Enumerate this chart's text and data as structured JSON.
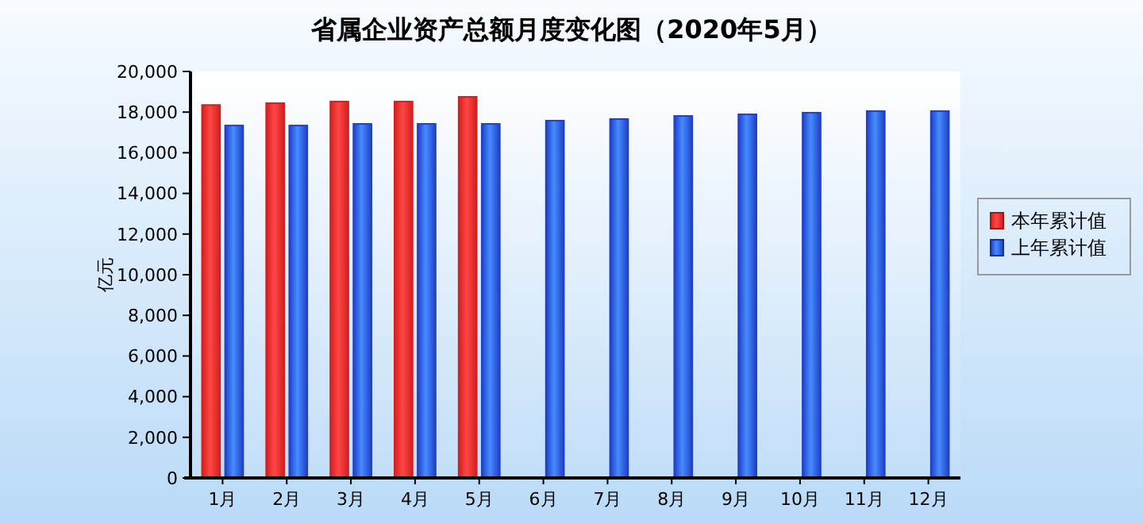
{
  "chart_data": {
    "type": "bar",
    "title": "省属企业资产总额月度变化图（2020年5月）",
    "ylabel": "亿元",
    "categories": [
      "1月",
      "2月",
      "3月",
      "4月",
      "5月",
      "6月",
      "7月",
      "8月",
      "9月",
      "10月",
      "11月",
      "12月"
    ],
    "series": [
      {
        "name": "本年累计值",
        "color": "#d42020",
        "values": [
          18350,
          18440,
          18520,
          18520,
          18750,
          null,
          null,
          null,
          null,
          null,
          null,
          null
        ]
      },
      {
        "name": "上年累计值",
        "color": "#2040c8",
        "values": [
          17340,
          17340,
          17420,
          17420,
          17420,
          17580,
          17660,
          17810,
          17890,
          17970,
          18050,
          18050
        ]
      }
    ],
    "ylim": [
      0,
      20000
    ],
    "yticks": [
      0,
      {
        "value": 2000,
        "label": "2,000"
      },
      {
        "value": 4000,
        "label": "4,000"
      },
      {
        "value": 6000,
        "label": "6,000"
      },
      {
        "value": 8000,
        "label": "8,000"
      },
      {
        "value": 10000,
        "label": "10,000"
      },
      {
        "value": 12000,
        "label": "12,000"
      },
      {
        "value": 14000,
        "label": "14,000"
      },
      {
        "value": 16000,
        "label": "16,000"
      },
      {
        "value": 18000,
        "label": "18,000"
      },
      {
        "value": 20000,
        "label": "20,000"
      }
    ],
    "legend": "right",
    "grid": false
  }
}
